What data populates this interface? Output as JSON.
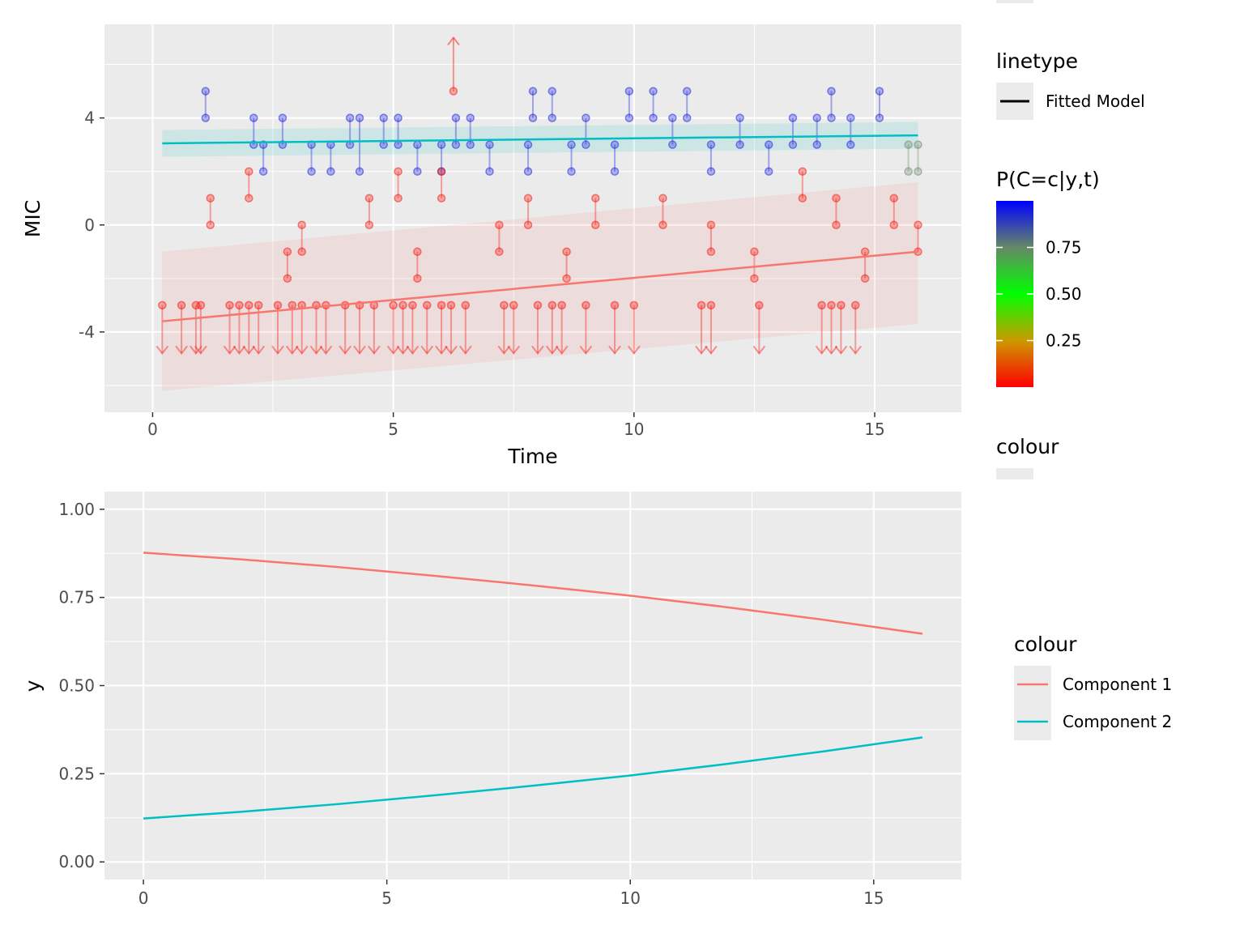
{
  "chart_data": [
    {
      "type": "scatter",
      "xlabel": "Time",
      "ylabel": "MIC",
      "xlim": [
        -1,
        16.8
      ],
      "ylim": [
        -7,
        7.5
      ],
      "x_ticks": [
        0,
        5,
        10,
        15
      ],
      "y_ticks": [
        -4,
        0,
        4
      ],
      "x_tick_labels": [
        "0",
        "5",
        "10",
        "15"
      ],
      "y_tick_labels": [
        "-4",
        "0",
        "4"
      ],
      "grid": true,
      "colour_scale": "P(C=c|y,t): red (low) to green (0.50) to blue (high)",
      "fitted_lines": [
        {
          "name": "Fitted Model",
          "component": "Component 2",
          "x": [
            0.2,
            15.9
          ],
          "y": [
            3.05,
            3.35
          ],
          "ribbon_low": [
            2.55,
            2.85
          ],
          "ribbon_high": [
            3.55,
            3.85
          ],
          "color": "#00BFC4"
        },
        {
          "name": "Fitted Model",
          "component": "Component 1",
          "x": [
            0.2,
            15.9
          ],
          "y": [
            -3.6,
            -1.0
          ],
          "ribbon_low": [
            -6.2,
            -3.7
          ],
          "ribbon_high": [
            -1.0,
            1.6
          ],
          "color": "#F8766D"
        }
      ],
      "intervals": [
        {
          "x": 1.1,
          "lo": 4,
          "hi": 5,
          "p": 0.95
        },
        {
          "x": 2.1,
          "lo": 3,
          "hi": 4,
          "p": 0.95
        },
        {
          "x": 2.3,
          "lo": 2,
          "hi": 3,
          "p": 0.95
        },
        {
          "x": 2.7,
          "lo": 3,
          "hi": 4,
          "p": 0.95
        },
        {
          "x": 3.3,
          "lo": 2,
          "hi": 3,
          "p": 0.95
        },
        {
          "x": 3.7,
          "lo": 2,
          "hi": 3,
          "p": 0.95
        },
        {
          "x": 4.1,
          "lo": 3,
          "hi": 4,
          "p": 0.95
        },
        {
          "x": 4.3,
          "lo": 2,
          "hi": 4,
          "p": 0.95
        },
        {
          "x": 4.8,
          "lo": 3,
          "hi": 4,
          "p": 0.95
        },
        {
          "x": 5.1,
          "lo": 3,
          "hi": 4,
          "p": 0.95
        },
        {
          "x": 5.5,
          "lo": 2,
          "hi": 3,
          "p": 0.95
        },
        {
          "x": 6.0,
          "lo": 2,
          "hi": 3,
          "p": 0.95
        },
        {
          "x": 6.3,
          "lo": 3,
          "hi": 4,
          "p": 0.95
        },
        {
          "x": 6.6,
          "lo": 3,
          "hi": 4,
          "p": 0.95
        },
        {
          "x": 7.0,
          "lo": 2,
          "hi": 3,
          "p": 0.95
        },
        {
          "x": 7.8,
          "lo": 2,
          "hi": 3,
          "p": 0.95
        },
        {
          "x": 7.9,
          "lo": 4,
          "hi": 5,
          "p": 0.95
        },
        {
          "x": 8.3,
          "lo": 4,
          "hi": 5,
          "p": 0.95
        },
        {
          "x": 8.7,
          "lo": 2,
          "hi": 3,
          "p": 0.95
        },
        {
          "x": 9.0,
          "lo": 3,
          "hi": 4,
          "p": 0.95
        },
        {
          "x": 9.6,
          "lo": 2,
          "hi": 3,
          "p": 0.95
        },
        {
          "x": 9.9,
          "lo": 4,
          "hi": 5,
          "p": 0.95
        },
        {
          "x": 10.4,
          "lo": 4,
          "hi": 5,
          "p": 0.95
        },
        {
          "x": 10.8,
          "lo": 3,
          "hi": 4,
          "p": 0.95
        },
        {
          "x": 11.1,
          "lo": 4,
          "hi": 5,
          "p": 0.95
        },
        {
          "x": 11.6,
          "lo": 2,
          "hi": 3,
          "p": 0.95
        },
        {
          "x": 12.2,
          "lo": 3,
          "hi": 4,
          "p": 0.95
        },
        {
          "x": 12.8,
          "lo": 2,
          "hi": 3,
          "p": 0.95
        },
        {
          "x": 13.3,
          "lo": 3,
          "hi": 4,
          "p": 0.95
        },
        {
          "x": 13.8,
          "lo": 3,
          "hi": 4,
          "p": 0.95
        },
        {
          "x": 14.1,
          "lo": 4,
          "hi": 5,
          "p": 0.95
        },
        {
          "x": 14.5,
          "lo": 3,
          "hi": 4,
          "p": 0.95
        },
        {
          "x": 15.1,
          "lo": 4,
          "hi": 5,
          "p": 0.95
        },
        {
          "x": 15.7,
          "lo": 2,
          "hi": 3,
          "p": 0.75
        },
        {
          "x": 15.9,
          "lo": 2,
          "hi": 3,
          "p": 0.75
        },
        {
          "x": 1.2,
          "lo": 0,
          "hi": 1,
          "p": 0.02
        },
        {
          "x": 2.0,
          "lo": 1,
          "hi": 2,
          "p": 0.02
        },
        {
          "x": 3.1,
          "lo": -1,
          "hi": 0,
          "p": 0.02
        },
        {
          "x": 4.5,
          "lo": 0,
          "hi": 1,
          "p": 0.02
        },
        {
          "x": 5.1,
          "lo": 1,
          "hi": 2,
          "p": 0.02
        },
        {
          "x": 6.0,
          "lo": 1,
          "hi": 2,
          "p": 0.02
        },
        {
          "x": 7.2,
          "lo": -1,
          "hi": 0,
          "p": 0.02
        },
        {
          "x": 7.8,
          "lo": 0,
          "hi": 1,
          "p": 0.02
        },
        {
          "x": 9.2,
          "lo": 0,
          "hi": 1,
          "p": 0.02
        },
        {
          "x": 10.6,
          "lo": 0,
          "hi": 1,
          "p": 0.02
        },
        {
          "x": 11.6,
          "lo": -1,
          "hi": 0,
          "p": 0.02
        },
        {
          "x": 13.5,
          "lo": 1,
          "hi": 2,
          "p": 0.02
        },
        {
          "x": 14.2,
          "lo": 0,
          "hi": 1,
          "p": 0.02
        },
        {
          "x": 15.4,
          "lo": 0,
          "hi": 1,
          "p": 0.02
        },
        {
          "x": 15.9,
          "lo": -1,
          "hi": 0,
          "p": 0.02
        },
        {
          "x": 2.8,
          "lo": -2,
          "hi": -1,
          "p": 0.02
        },
        {
          "x": 5.5,
          "lo": -2,
          "hi": -1,
          "p": 0.02
        },
        {
          "x": 8.6,
          "lo": -2,
          "hi": -1,
          "p": 0.02
        },
        {
          "x": 12.5,
          "lo": -2,
          "hi": -1,
          "p": 0.02
        },
        {
          "x": 14.8,
          "lo": -2,
          "hi": -1,
          "p": 0.02
        }
      ],
      "left_censored": {
        "upper": -3,
        "lower_arrow_to": -4.8,
        "p": 0.01,
        "x": [
          0.2,
          0.6,
          0.9,
          1.0,
          1.6,
          1.8,
          2.0,
          2.2,
          2.6,
          2.9,
          3.1,
          3.4,
          3.6,
          4.0,
          4.3,
          4.6,
          5.0,
          5.2,
          5.4,
          5.7,
          6.0,
          6.2,
          6.5,
          7.3,
          7.5,
          8.0,
          8.3,
          8.5,
          9.0,
          9.6,
          10.0,
          11.4,
          11.6,
          12.6,
          13.9,
          14.1,
          14.3,
          14.6
        ]
      },
      "right_censored": {
        "x": 6.25,
        "lower": 5,
        "arrow_to": 7,
        "p": 0.02
      }
    },
    {
      "type": "line",
      "xlabel": "",
      "ylabel": "y",
      "xlim": [
        -0.8,
        16.8
      ],
      "ylim": [
        -0.05,
        1.05
      ],
      "x_ticks": [
        0,
        5,
        10,
        15
      ],
      "y_ticks": [
        0.0,
        0.25,
        0.5,
        0.75,
        1.0
      ],
      "x_tick_labels": [
        "0",
        "5",
        "10",
        "15"
      ],
      "y_tick_labels": [
        "0.00",
        "0.25",
        "0.50",
        "0.75",
        "1.00"
      ],
      "grid": true,
      "legend_position": "right",
      "series": [
        {
          "name": "Component 1",
          "color": "#F8766D",
          "x": [
            0,
            2,
            4,
            6,
            8,
            10,
            12,
            14,
            16
          ],
          "values": [
            0.877,
            0.858,
            0.836,
            0.811,
            0.784,
            0.755,
            0.722,
            0.686,
            0.647
          ]
        },
        {
          "name": "Component 2",
          "color": "#00BFC4",
          "x": [
            0,
            2,
            4,
            6,
            8,
            10,
            12,
            14,
            16
          ],
          "values": [
            0.123,
            0.142,
            0.164,
            0.189,
            0.216,
            0.245,
            0.278,
            0.314,
            0.353
          ]
        }
      ]
    }
  ],
  "legend": {
    "linetype_title": "linetype",
    "linetype_label": "Fitted Model",
    "gradient_title": "P(C=c|y,t)",
    "gradient_labels": [
      "0.75",
      "0.50",
      "0.25"
    ],
    "gradient_values": [
      0.75,
      0.5,
      0.25
    ],
    "colour_title_top": "colour",
    "colour_title_bottom": "colour",
    "colour_labels": [
      "Component 1",
      "Component 2"
    ]
  }
}
